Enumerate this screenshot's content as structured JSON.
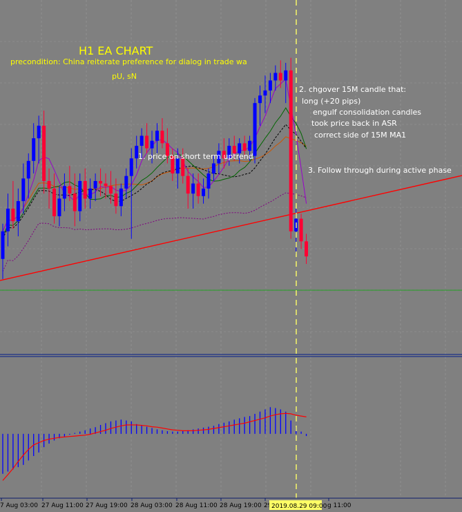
{
  "header": {
    "title": "H1 EA CHART",
    "precondition": "precondition: China reiterate preference for dialog in trade wa",
    "initials": "pU, sN"
  },
  "annotations": {
    "a1": "1. price on short term uptrend",
    "a2": [
      "2. chgover 15M candle that:",
      "long (+20 pips)",
      "engulf consolidation candles",
      "took price back in ASR",
      "correct side of 15M MA1"
    ],
    "a3": "3. Follow through during active phase"
  },
  "x_axis": {
    "labels": [
      "7 Aug 03:00",
      "27 Aug 11:00",
      "27 Aug 19:00",
      "28 Aug 03:00",
      "28 Aug 11:00",
      "28 Aug 19:00",
      "29",
      "g 11:00"
    ],
    "crosshair_label": "2019.08.29 09:00"
  },
  "colors": {
    "background": "#808080",
    "bull": "#0000ff",
    "bear": "#ff0033",
    "title": "#ffff00",
    "crosshair": "#ffff66",
    "trendline": "#ff0000",
    "ma_fast": "#9900cc",
    "ma_mid": "#006600",
    "ma_slow": "#cc5500",
    "ma_dotted": "#000000",
    "ma_purple_dotted": "#800080",
    "hist": "#0000ff",
    "signal": "#ff0000",
    "grid": "#9a9a9a"
  },
  "chart_data": {
    "type": "candlestick",
    "timeframe": "H1",
    "candles": [
      {
        "o": 1.1032,
        "h": 1.1046,
        "l": 1.1024,
        "c": 1.1043
      },
      {
        "o": 1.1043,
        "h": 1.1058,
        "l": 1.1037,
        "c": 1.1052
      },
      {
        "o": 1.1052,
        "h": 1.1063,
        "l": 1.1044,
        "c": 1.1047
      },
      {
        "o": 1.1047,
        "h": 1.106,
        "l": 1.1041,
        "c": 1.1055
      },
      {
        "o": 1.1055,
        "h": 1.107,
        "l": 1.105,
        "c": 1.1064
      },
      {
        "o": 1.1064,
        "h": 1.1074,
        "l": 1.1056,
        "c": 1.1071
      },
      {
        "o": 1.1071,
        "h": 1.1086,
        "l": 1.1066,
        "c": 1.108
      },
      {
        "o": 1.108,
        "h": 1.1089,
        "l": 1.107,
        "c": 1.1085
      },
      {
        "o": 1.1085,
        "h": 1.1091,
        "l": 1.1058,
        "c": 1.1063
      },
      {
        "o": 1.1063,
        "h": 1.1068,
        "l": 1.1052,
        "c": 1.106
      },
      {
        "o": 1.106,
        "h": 1.1066,
        "l": 1.1046,
        "c": 1.1049
      },
      {
        "o": 1.1049,
        "h": 1.1061,
        "l": 1.1045,
        "c": 1.1056
      },
      {
        "o": 1.1056,
        "h": 1.1066,
        "l": 1.1051,
        "c": 1.1061
      },
      {
        "o": 1.1061,
        "h": 1.1069,
        "l": 1.1055,
        "c": 1.1058
      },
      {
        "o": 1.1058,
        "h": 1.1066,
        "l": 1.1045,
        "c": 1.1051
      },
      {
        "o": 1.1051,
        "h": 1.1066,
        "l": 1.1047,
        "c": 1.1063
      },
      {
        "o": 1.1063,
        "h": 1.1068,
        "l": 1.1052,
        "c": 1.1056
      },
      {
        "o": 1.1056,
        "h": 1.1064,
        "l": 1.1052,
        "c": 1.106
      },
      {
        "o": 1.106,
        "h": 1.1066,
        "l": 1.1055,
        "c": 1.1063
      },
      {
        "o": 1.1063,
        "h": 1.1068,
        "l": 1.1057,
        "c": 1.1062
      },
      {
        "o": 1.1062,
        "h": 1.1066,
        "l": 1.1056,
        "c": 1.1061
      },
      {
        "o": 1.1061,
        "h": 1.1067,
        "l": 1.1054,
        "c": 1.1058
      },
      {
        "o": 1.1058,
        "h": 1.1064,
        "l": 1.105,
        "c": 1.1053
      },
      {
        "o": 1.1053,
        "h": 1.1062,
        "l": 1.1049,
        "c": 1.106
      },
      {
        "o": 1.106,
        "h": 1.1068,
        "l": 1.1056,
        "c": 1.1065
      },
      {
        "o": 1.1065,
        "h": 1.1076,
        "l": 1.104,
        "c": 1.1072
      },
      {
        "o": 1.1072,
        "h": 1.1081,
        "l": 1.1068,
        "c": 1.1077
      },
      {
        "o": 1.1077,
        "h": 1.1084,
        "l": 1.1072,
        "c": 1.1081
      },
      {
        "o": 1.1081,
        "h": 1.1086,
        "l": 1.1074,
        "c": 1.1076
      },
      {
        "o": 1.1076,
        "h": 1.1083,
        "l": 1.107,
        "c": 1.1079
      },
      {
        "o": 1.1079,
        "h": 1.1086,
        "l": 1.1074,
        "c": 1.1083
      },
      {
        "o": 1.1083,
        "h": 1.1088,
        "l": 1.1076,
        "c": 1.1078
      },
      {
        "o": 1.1078,
        "h": 1.1084,
        "l": 1.107,
        "c": 1.1073
      },
      {
        "o": 1.1073,
        "h": 1.1076,
        "l": 1.1063,
        "c": 1.1066
      },
      {
        "o": 1.1066,
        "h": 1.1076,
        "l": 1.106,
        "c": 1.1072
      },
      {
        "o": 1.1072,
        "h": 1.1076,
        "l": 1.1062,
        "c": 1.1065
      },
      {
        "o": 1.1065,
        "h": 1.1068,
        "l": 1.1052,
        "c": 1.1058
      },
      {
        "o": 1.1058,
        "h": 1.1066,
        "l": 1.1052,
        "c": 1.1062
      },
      {
        "o": 1.1062,
        "h": 1.1066,
        "l": 1.1054,
        "c": 1.1057
      },
      {
        "o": 1.1057,
        "h": 1.1064,
        "l": 1.1054,
        "c": 1.106
      },
      {
        "o": 1.106,
        "h": 1.1068,
        "l": 1.1056,
        "c": 1.1066
      },
      {
        "o": 1.1066,
        "h": 1.1073,
        "l": 1.1063,
        "c": 1.107
      },
      {
        "o": 1.107,
        "h": 1.1078,
        "l": 1.1066,
        "c": 1.1075
      },
      {
        "o": 1.1075,
        "h": 1.108,
        "l": 1.1068,
        "c": 1.1072
      },
      {
        "o": 1.1072,
        "h": 1.108,
        "l": 1.1069,
        "c": 1.1077
      },
      {
        "o": 1.1077,
        "h": 1.1081,
        "l": 1.1071,
        "c": 1.1074
      },
      {
        "o": 1.1074,
        "h": 1.108,
        "l": 1.107,
        "c": 1.1078
      },
      {
        "o": 1.1078,
        "h": 1.1081,
        "l": 1.1072,
        "c": 1.1075
      },
      {
        "o": 1.1075,
        "h": 1.1081,
        "l": 1.1071,
        "c": 1.1079
      },
      {
        "o": 1.1073,
        "h": 1.1096,
        "l": 1.107,
        "c": 1.1094
      },
      {
        "o": 1.1094,
        "h": 1.1101,
        "l": 1.1085,
        "c": 1.1097
      },
      {
        "o": 1.1097,
        "h": 1.1105,
        "l": 1.109,
        "c": 1.1099
      },
      {
        "o": 1.1099,
        "h": 1.1106,
        "l": 1.1094,
        "c": 1.1103
      },
      {
        "o": 1.1103,
        "h": 1.1109,
        "l": 1.1099,
        "c": 1.1106
      },
      {
        "o": 1.1106,
        "h": 1.1111,
        "l": 1.11,
        "c": 1.1103
      },
      {
        "o": 1.1103,
        "h": 1.111,
        "l": 1.1094,
        "c": 1.1107
      },
      {
        "o": 1.1107,
        "h": 1.1112,
        "l": 1.104,
        "c": 1.1043
      },
      {
        "o": 1.1043,
        "h": 1.1052,
        "l": 1.1034,
        "c": 1.1048
      },
      {
        "o": 1.1048,
        "h": 1.105,
        "l": 1.1036,
        "c": 1.1039
      },
      {
        "o": 1.1039,
        "h": 1.1042,
        "l": 1.103,
        "c": 1.1033
      }
    ],
    "ylim": [
      1.0994,
      1.1135
    ],
    "histogram": [
      -0.9,
      -0.85,
      -0.8,
      -0.75,
      -0.7,
      -0.6,
      -0.5,
      -0.42,
      -0.3,
      -0.22,
      -0.15,
      -0.1,
      -0.06,
      -0.02,
      0.02,
      0.05,
      0.08,
      0.12,
      0.15,
      0.2,
      0.24,
      0.28,
      0.3,
      0.32,
      0.3,
      0.28,
      0.22,
      0.2,
      0.16,
      0.13,
      0.1,
      0.08,
      0.06,
      0.05,
      0.05,
      0.06,
      0.08,
      0.1,
      0.12,
      0.14,
      0.16,
      0.18,
      0.22,
      0.25,
      0.28,
      0.32,
      0.35,
      0.38,
      0.4,
      0.45,
      0.5,
      0.55,
      0.6,
      0.58,
      0.55,
      0.5,
      0.3,
      0.15,
      0.05,
      -0.05
    ],
    "signal": [
      -1.05,
      -0.92,
      -0.78,
      -0.62,
      -0.48,
      -0.35,
      -0.25,
      -0.2,
      -0.15,
      -0.12,
      -0.1,
      -0.08,
      -0.07,
      -0.06,
      -0.05,
      -0.04,
      -0.03,
      -0.01,
      0.02,
      0.05,
      0.08,
      0.12,
      0.15,
      0.18,
      0.2,
      0.2,
      0.2,
      0.19,
      0.18,
      0.16,
      0.15,
      0.13,
      0.11,
      0.09,
      0.08,
      0.07,
      0.07,
      0.07,
      0.08,
      0.09,
      0.1,
      0.12,
      0.14,
      0.16,
      0.18,
      0.2,
      0.22,
      0.24,
      0.27,
      0.3,
      0.33,
      0.36,
      0.4,
      0.43,
      0.45,
      0.46,
      0.45,
      0.42,
      0.4,
      0.38
    ],
    "hist_ylim": [
      -1.2,
      0.9
    ]
  }
}
